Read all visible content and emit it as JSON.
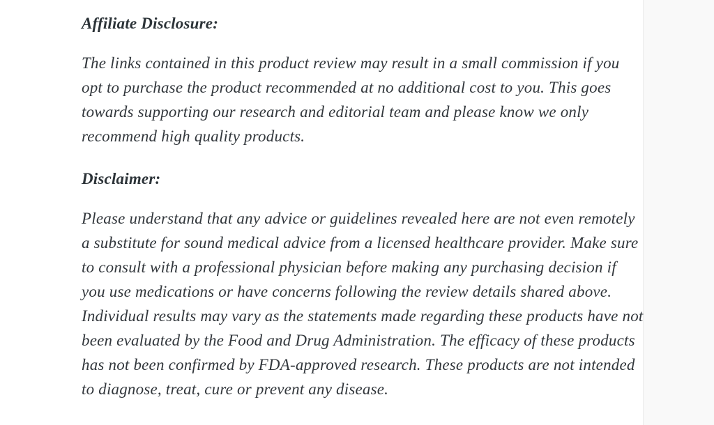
{
  "page": {
    "background_color": "#ffffff",
    "gutter_color": "#f9f9f9",
    "text_color": "#32373c",
    "heading_color": "#2c3338"
  },
  "article": {
    "sections": [
      {
        "heading": "Affiliate Disclosure:",
        "body": "The links contained in this product review may result in a small commission if you opt to purchase the product recommended at no additional cost to you. This goes towards supporting our research and editorial team and please know we only recommend high quality products."
      },
      {
        "heading": "Disclaimer:",
        "body": "Please understand that any advice or guidelines revealed here are not even remotely a substitute for sound medical advice from a licensed healthcare provider. Make sure to consult with a professional physician before making any purchasing decision if you use medications or have concerns following the review details shared above. Individual results may vary as the statements made regarding these products have not been evaluated by the Food and Drug Administration. The efficacy of these products has not been confirmed by FDA-approved research. These products are not intended to diagnose, treat, cure or prevent any disease."
      }
    ]
  }
}
